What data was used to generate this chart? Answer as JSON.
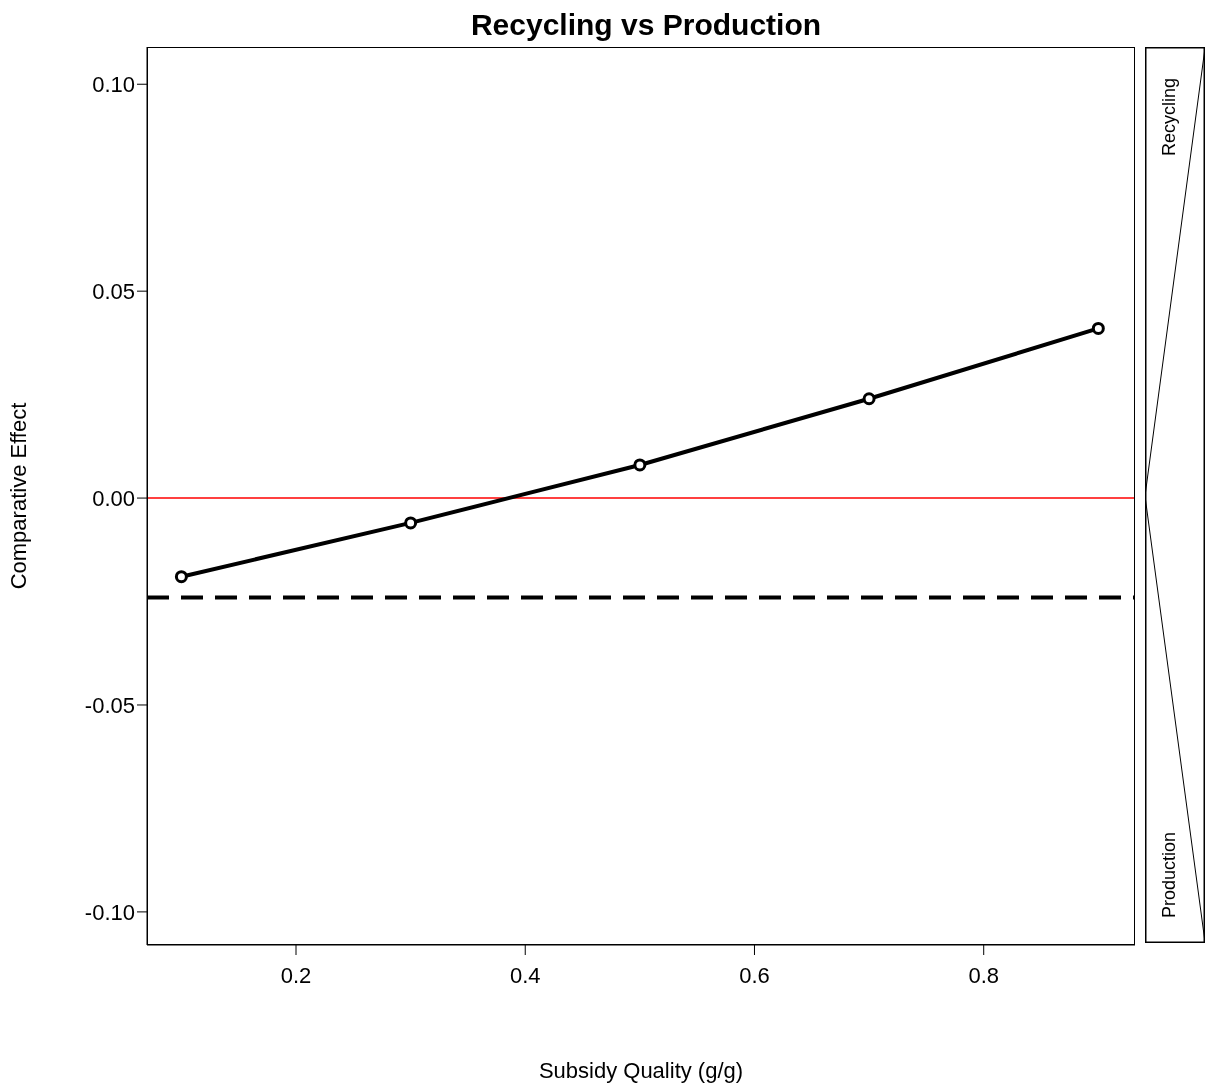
{
  "chart_data": {
    "type": "line",
    "title": "Recycling vs Production",
    "xlabel": "Subsidy Quality (g/g)",
    "ylabel": "Comparative Effect",
    "x": [
      0.1,
      0.3,
      0.5,
      0.7,
      0.9
    ],
    "series": [
      {
        "color": "#000000",
        "values": [
          -0.019,
          -0.006,
          0.008,
          0.024,
          0.041
        ]
      }
    ],
    "xlim": [
      0.07,
      0.932
    ],
    "xticks": [
      0.2,
      0.4,
      0.6,
      0.8
    ],
    "ylim": [
      -0.108,
      0.109
    ],
    "yticks": [
      {
        "value": -0.1,
        "label": "-0.10"
      },
      {
        "value": -0.05,
        "label": "-0.05"
      },
      {
        "value": 0,
        "label": "0.00"
      },
      {
        "value": 0.05,
        "label": "0.05"
      },
      {
        "value": 0.1,
        "label": "0.10"
      }
    ],
    "ref_lines": [
      {
        "axis": "y",
        "value": 0,
        "color": "#ff0000",
        "line_style": "solid"
      },
      {
        "axis": "y",
        "value": -0.024,
        "color": "#000000",
        "line_style": "dashed"
      }
    ],
    "annotations": [
      "Recycling",
      "Production"
    ],
    "marker": "circle",
    "line_style": "solid",
    "grid": false,
    "legend": false
  }
}
